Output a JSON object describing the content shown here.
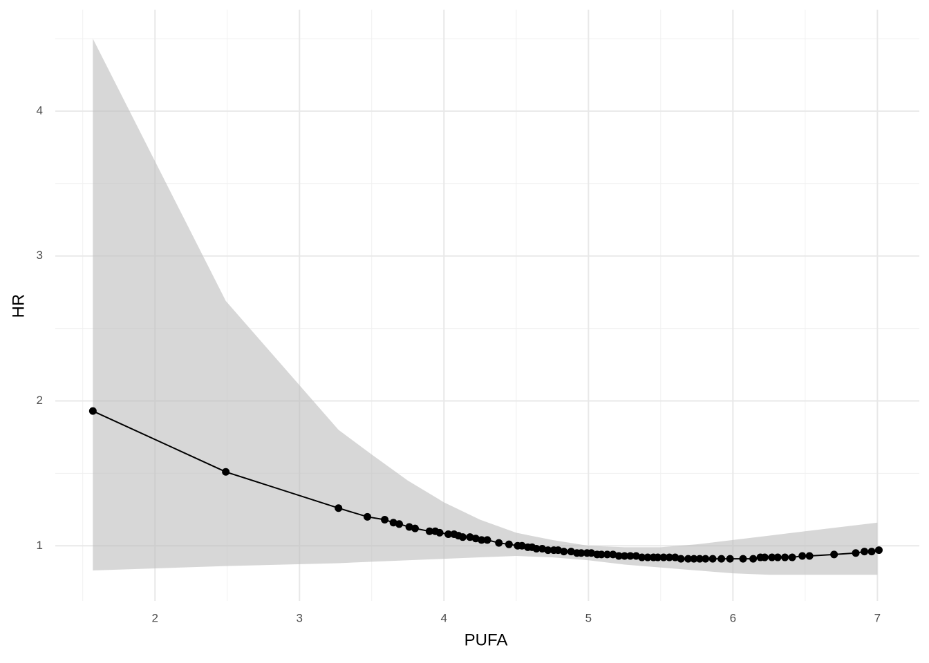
{
  "chart_data": {
    "type": "line",
    "x_label": "PUFA",
    "y_label": "HR",
    "x": [
      1.57,
      2.49,
      3.27,
      3.47,
      3.59,
      3.65,
      3.69,
      3.76,
      3.8,
      3.9,
      3.94,
      3.97,
      4.03,
      4.07,
      4.1,
      4.13,
      4.18,
      4.22,
      4.26,
      4.3,
      4.38,
      4.45,
      4.51,
      4.54,
      4.58,
      4.61,
      4.64,
      4.68,
      4.72,
      4.76,
      4.79,
      4.83,
      4.88,
      4.92,
      4.95,
      4.99,
      5.02,
      5.06,
      5.09,
      5.13,
      5.17,
      5.21,
      5.25,
      5.29,
      5.33,
      5.37,
      5.41,
      5.45,
      5.48,
      5.52,
      5.56,
      5.6,
      5.64,
      5.69,
      5.73,
      5.77,
      5.81,
      5.86,
      5.92,
      5.98,
      6.07,
      6.14,
      6.19,
      6.22,
      6.27,
      6.31,
      6.36,
      6.41,
      6.48,
      6.53,
      6.7,
      6.85,
      6.91,
      6.96,
      7.01
    ],
    "values": [
      1.93,
      1.51,
      1.26,
      1.2,
      1.18,
      1.16,
      1.15,
      1.13,
      1.12,
      1.1,
      1.1,
      1.09,
      1.08,
      1.08,
      1.07,
      1.06,
      1.06,
      1.05,
      1.04,
      1.04,
      1.02,
      1.01,
      1.0,
      1.0,
      0.99,
      0.99,
      0.98,
      0.98,
      0.97,
      0.97,
      0.97,
      0.96,
      0.96,
      0.95,
      0.95,
      0.95,
      0.95,
      0.94,
      0.94,
      0.94,
      0.94,
      0.93,
      0.93,
      0.93,
      0.93,
      0.92,
      0.92,
      0.92,
      0.92,
      0.92,
      0.92,
      0.92,
      0.91,
      0.91,
      0.91,
      0.91,
      0.91,
      0.91,
      0.91,
      0.91,
      0.91,
      0.91,
      0.92,
      0.92,
      0.92,
      0.92,
      0.92,
      0.92,
      0.93,
      0.93,
      0.94,
      0.95,
      0.96,
      0.96,
      0.97
    ],
    "color": "#000000",
    "ribbon": {
      "color": "#bdbdbd",
      "x": [
        1.57,
        2.49,
        3.27,
        3.5,
        3.75,
        4.0,
        4.25,
        4.5,
        4.75,
        5.0,
        5.25,
        5.5,
        5.75,
        6.0,
        6.25,
        6.5,
        6.75,
        7.0
      ],
      "upper": [
        4.5,
        2.69,
        1.8,
        1.63,
        1.45,
        1.3,
        1.18,
        1.09,
        1.04,
        1.0,
        0.99,
        0.99,
        1.01,
        1.04,
        1.07,
        1.1,
        1.13,
        1.16
      ],
      "lower": [
        0.83,
        0.86,
        0.88,
        0.89,
        0.9,
        0.91,
        0.92,
        0.93,
        0.92,
        0.9,
        0.87,
        0.85,
        0.83,
        0.81,
        0.8,
        0.8,
        0.8,
        0.8
      ]
    },
    "xlim": [
      1.31,
      7.29
    ],
    "ylim": [
      0.62,
      4.7
    ],
    "xticks": [
      2,
      3,
      4,
      5,
      6,
      7
    ],
    "yticks": [
      1,
      2,
      3,
      4
    ],
    "minor_xticks": [
      1.5,
      2.5,
      3.5,
      4.5,
      5.5,
      6.5
    ],
    "minor_yticks": [
      1.5,
      2.5,
      3.5,
      4.5
    ],
    "grid": true
  }
}
